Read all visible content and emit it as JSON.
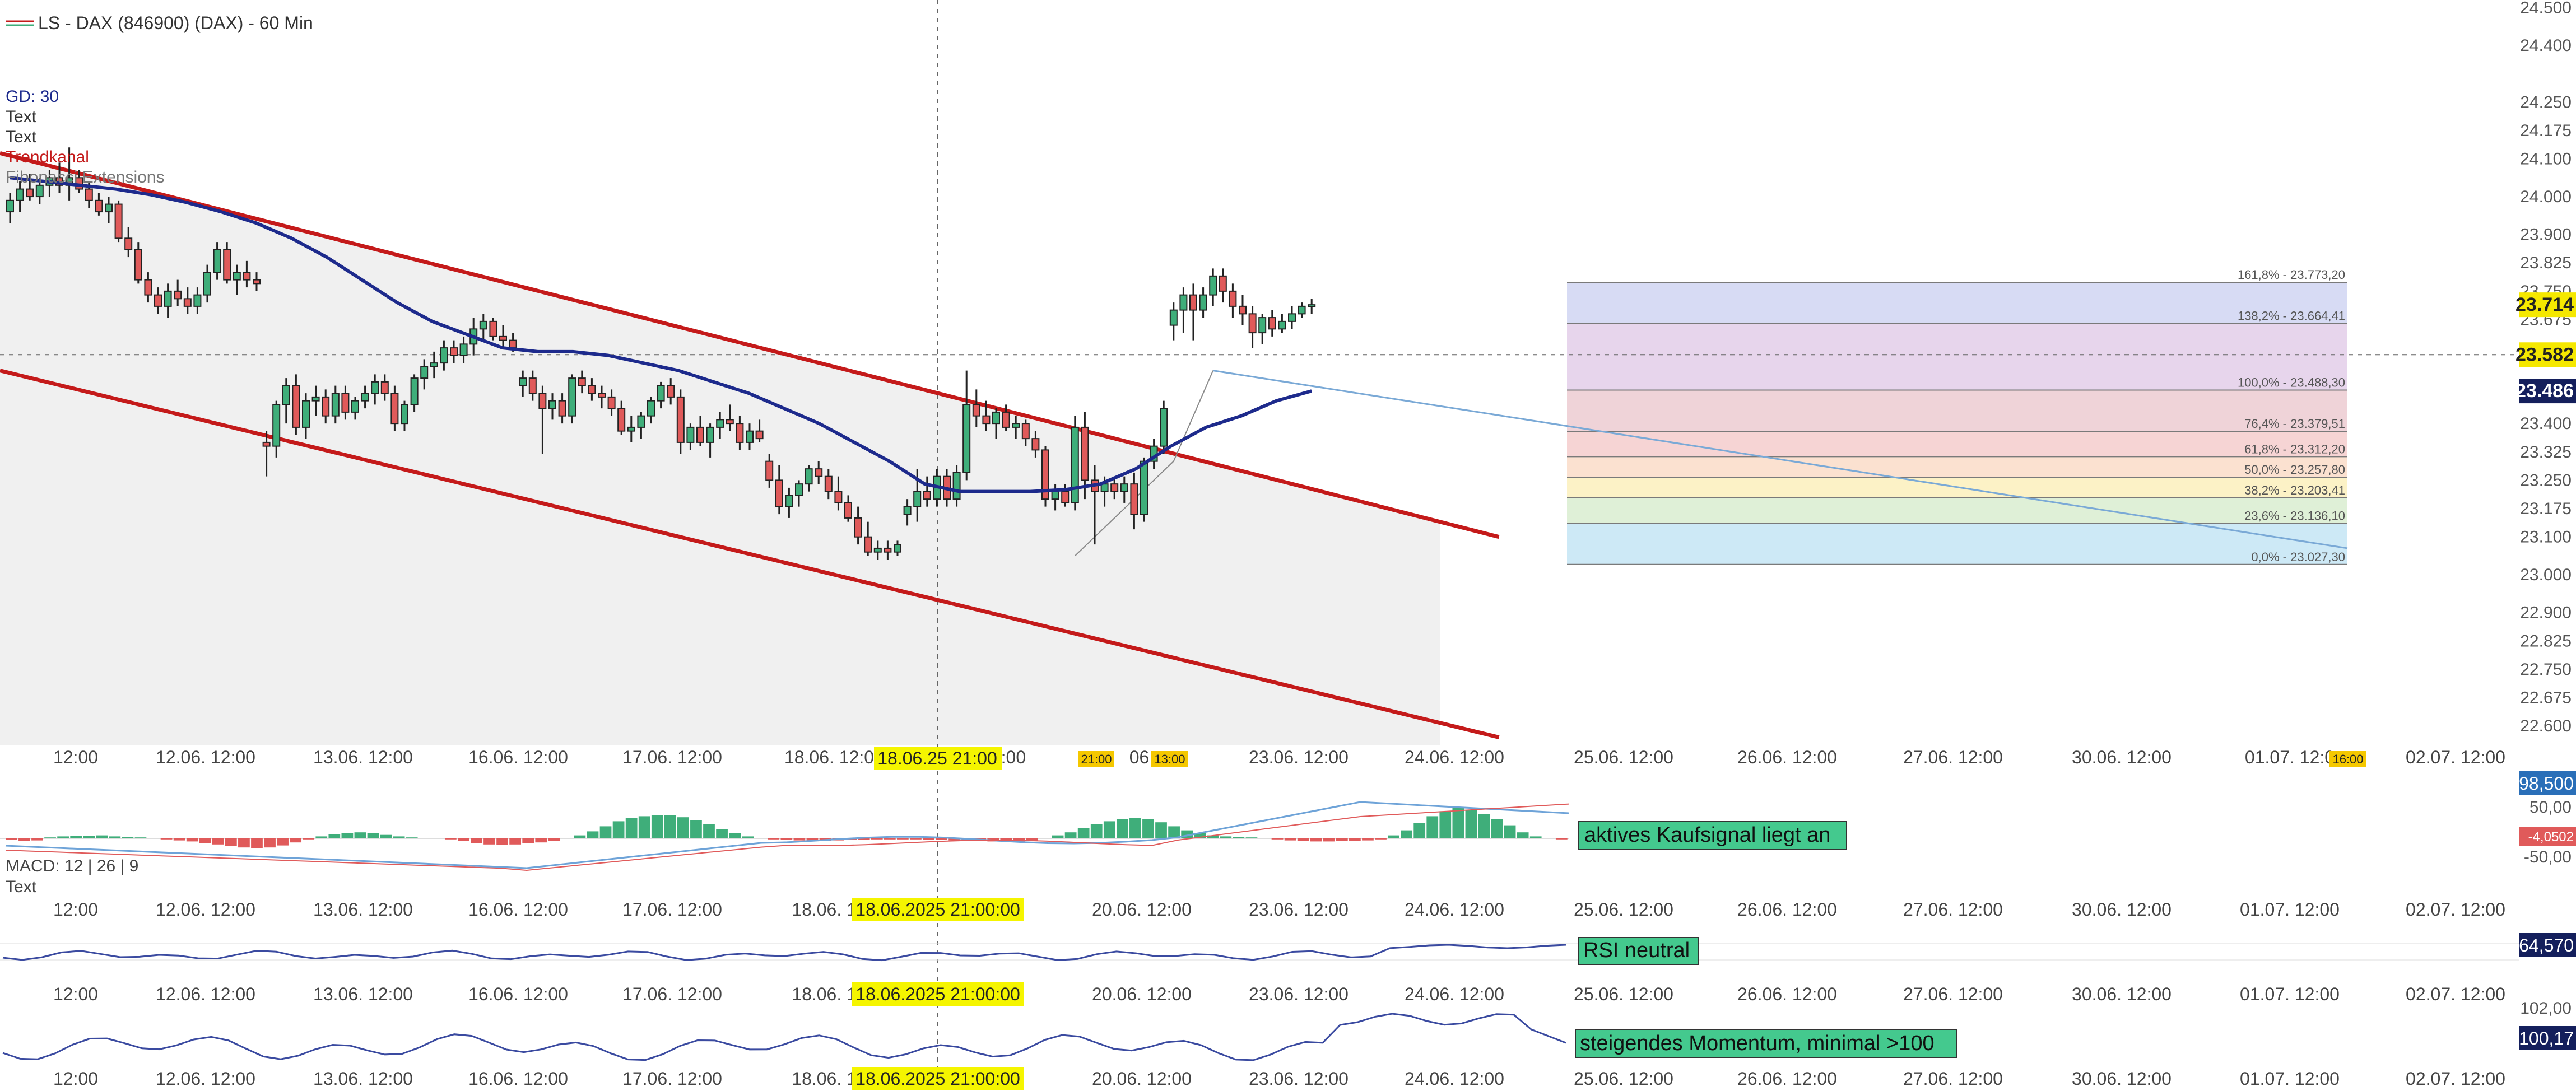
{
  "header": {
    "title": "LS - DAX (846900) (DAX) - 60 Min",
    "legend": [
      "GD: 30",
      "Text",
      "Text",
      "Trendkanal",
      "Fibonacci Extensions"
    ]
  },
  "colors": {
    "bull": "#3fae7a",
    "bear": "#e05a5a",
    "ma": "#1d2a8c",
    "channel": "#c41a1a",
    "channel_fill": "#f0f0f0",
    "marker": "#f5f500",
    "badge_dark": "#141f5c",
    "badge_yellow": "#f5e800",
    "signal_box": "#44c98e",
    "macd_line": "#6ea3d8",
    "signal_line": "#e05a5a",
    "rsi_line": "#3a4aa0"
  },
  "crosshair": {
    "price": "23.582",
    "date": "18.06.25 21:00",
    "date_long": "18.06.2025 21:00:00"
  },
  "time_markers": [
    "21:00",
    "13:00",
    "16:00"
  ],
  "x_axis": {
    "labels": [
      "12:00",
      "12.06. 12:00",
      "13.06. 12:00",
      "16.06. 12:00",
      "17.06. 12:00",
      "18.06. 12:00",
      "19.06. 12:00",
      "20.06. 12:00",
      "23.06. 12:00",
      "24.06. 12:00",
      "25.06. 12:00",
      "26.06. 12:00",
      "27.06. 12:00",
      "30.06. 12:00",
      "01.07. 12:00",
      "02.07. 12:00"
    ],
    "visible": [
      "12:00",
      "12.06. 12:00",
      "13.06. 12:00",
      "16.06. 12:00",
      "17.06. 12:00",
      "18.06. 12:0",
      "2:00",
      "06.",
      "23.06. 12:00",
      "24.06. 12:00",
      "25.06. 12:00",
      "26.06. 12:00",
      "27.06. 12:00",
      "30.06. 12:00",
      "01.07. 12:0",
      "02.07. 12:00"
    ],
    "visible_sub": [
      "12:00",
      "12.06. 12:00",
      "13.06. 12:00",
      "16.06. 12:00",
      "17.06. 12:00",
      "18.06. 12",
      "0",
      "20.06. 12:00",
      "23.06. 12:00",
      "24.06. 12:00",
      "25.06. 12:00",
      "26.06. 12:00",
      "27.06. 12:00",
      "30.06. 12:00",
      "01.07. 12:00",
      "02.07. 12:00"
    ]
  },
  "price_axis": {
    "ticks": [
      "24.500",
      "24.400",
      "24.250",
      "24.175",
      "24.100",
      "24.000",
      "23.900",
      "23.825",
      "23.750",
      "23.675",
      "23.400",
      "23.325",
      "23.250",
      "23.175",
      "23.100",
      "23.000",
      "22.900",
      "22.825",
      "22.750",
      "22.675",
      "22.600"
    ],
    "last_price": "23.714",
    "ma_value": "23.486"
  },
  "chart_data": {
    "type": "candlestick",
    "instrument": "LS - DAX (846900) (DAX)",
    "interval": "60 Min",
    "ylim": [
      22.55,
      24.52
    ],
    "moving_average": "GD: 30",
    "ohlc": [
      [
        23.96,
        24.01,
        23.93,
        23.99
      ],
      [
        23.99,
        24.04,
        23.96,
        24.02
      ],
      [
        24.02,
        24.06,
        23.99,
        24.0
      ],
      [
        24.0,
        24.05,
        23.98,
        24.03
      ],
      [
        24.03,
        24.07,
        24.0,
        24.05
      ],
      [
        24.05,
        24.09,
        24.01,
        24.03
      ],
      [
        24.03,
        24.13,
        23.99,
        24.05
      ],
      [
        24.05,
        24.07,
        24.01,
        24.02
      ],
      [
        24.02,
        24.04,
        23.97,
        23.99
      ],
      [
        23.99,
        24.01,
        23.95,
        23.96
      ],
      [
        23.96,
        24.0,
        23.93,
        23.98
      ],
      [
        23.98,
        23.99,
        23.88,
        23.89
      ],
      [
        23.89,
        23.92,
        23.84,
        23.86
      ],
      [
        23.86,
        23.88,
        23.77,
        23.78
      ],
      [
        23.78,
        23.8,
        23.72,
        23.74
      ],
      [
        23.74,
        23.76,
        23.69,
        23.71
      ],
      [
        23.71,
        23.77,
        23.68,
        23.75
      ],
      [
        23.75,
        23.78,
        23.71,
        23.73
      ],
      [
        23.73,
        23.76,
        23.69,
        23.71
      ],
      [
        23.71,
        23.76,
        23.69,
        23.74
      ],
      [
        23.74,
        23.82,
        23.72,
        23.8
      ],
      [
        23.8,
        23.88,
        23.78,
        23.86
      ],
      [
        23.86,
        23.88,
        23.77,
        23.78
      ],
      [
        23.78,
        23.82,
        23.74,
        23.8
      ],
      [
        23.8,
        23.83,
        23.76,
        23.78
      ],
      [
        23.78,
        23.8,
        23.75,
        23.77
      ],
      [
        23.35,
        23.38,
        23.26,
        23.34
      ],
      [
        23.34,
        23.46,
        23.31,
        23.45
      ],
      [
        23.45,
        23.52,
        23.4,
        23.5
      ],
      [
        23.5,
        23.53,
        23.37,
        23.39
      ],
      [
        23.39,
        23.48,
        23.36,
        23.46
      ],
      [
        23.46,
        23.5,
        23.42,
        23.47
      ],
      [
        23.47,
        23.49,
        23.4,
        23.42
      ],
      [
        23.42,
        23.5,
        23.4,
        23.48
      ],
      [
        23.48,
        23.5,
        23.41,
        23.43
      ],
      [
        23.43,
        23.47,
        23.41,
        23.46
      ],
      [
        23.46,
        23.5,
        23.44,
        23.48
      ],
      [
        23.48,
        23.53,
        23.45,
        23.51
      ],
      [
        23.51,
        23.53,
        23.46,
        23.48
      ],
      [
        23.48,
        23.5,
        23.38,
        23.4
      ],
      [
        23.4,
        23.46,
        23.38,
        23.45
      ],
      [
        23.45,
        23.53,
        23.43,
        23.52
      ],
      [
        23.52,
        23.57,
        23.49,
        23.55
      ],
      [
        23.55,
        23.59,
        23.52,
        23.56
      ],
      [
        23.56,
        23.62,
        23.54,
        23.6
      ],
      [
        23.6,
        23.62,
        23.56,
        23.58
      ],
      [
        23.58,
        23.63,
        23.56,
        23.61
      ],
      [
        23.61,
        23.68,
        23.58,
        23.65
      ],
      [
        23.65,
        23.69,
        23.62,
        23.67
      ],
      [
        23.67,
        23.68,
        23.62,
        23.63
      ],
      [
        23.63,
        23.66,
        23.6,
        23.62
      ],
      [
        23.62,
        23.64,
        23.59,
        23.6
      ],
      [
        23.5,
        23.54,
        23.47,
        23.52
      ],
      [
        23.52,
        23.54,
        23.46,
        23.48
      ],
      [
        23.48,
        23.5,
        23.32,
        23.44
      ],
      [
        23.44,
        23.48,
        23.41,
        23.46
      ],
      [
        23.46,
        23.48,
        23.4,
        23.42
      ],
      [
        23.42,
        23.53,
        23.4,
        23.52
      ],
      [
        23.52,
        23.54,
        23.48,
        23.5
      ],
      [
        23.5,
        23.52,
        23.46,
        23.48
      ],
      [
        23.48,
        23.5,
        23.44,
        23.47
      ],
      [
        23.47,
        23.49,
        23.42,
        23.44
      ],
      [
        23.44,
        23.46,
        23.37,
        23.38
      ],
      [
        23.38,
        23.42,
        23.35,
        23.39
      ],
      [
        23.39,
        23.43,
        23.36,
        23.42
      ],
      [
        23.42,
        23.47,
        23.4,
        23.46
      ],
      [
        23.46,
        23.51,
        23.44,
        23.5
      ],
      [
        23.5,
        23.52,
        23.45,
        23.47
      ],
      [
        23.47,
        23.49,
        23.32,
        23.35
      ],
      [
        23.35,
        23.4,
        23.33,
        23.39
      ],
      [
        23.39,
        23.42,
        23.34,
        23.35
      ],
      [
        23.35,
        23.4,
        23.31,
        23.39
      ],
      [
        23.39,
        23.43,
        23.36,
        23.41
      ],
      [
        23.41,
        23.45,
        23.38,
        23.4
      ],
      [
        23.4,
        23.42,
        23.33,
        23.35
      ],
      [
        23.35,
        23.4,
        23.33,
        23.38
      ],
      [
        23.38,
        23.41,
        23.35,
        23.36
      ],
      [
        23.3,
        23.32,
        23.23,
        23.25
      ],
      [
        23.25,
        23.29,
        23.16,
        23.18
      ],
      [
        23.18,
        23.23,
        23.15,
        23.21
      ],
      [
        23.21,
        23.25,
        23.18,
        23.24
      ],
      [
        23.24,
        23.29,
        23.22,
        23.28
      ],
      [
        23.28,
        23.3,
        23.24,
        23.26
      ],
      [
        23.26,
        23.28,
        23.2,
        23.22
      ],
      [
        23.22,
        23.26,
        23.17,
        23.19
      ],
      [
        23.19,
        23.21,
        23.14,
        23.15
      ],
      [
        23.15,
        23.18,
        23.08,
        23.1
      ],
      [
        23.1,
        23.14,
        23.05,
        23.06
      ],
      [
        23.06,
        23.09,
        23.04,
        23.07
      ],
      [
        23.07,
        23.09,
        23.04,
        23.06
      ],
      [
        23.06,
        23.09,
        23.05,
        23.08
      ],
      [
        23.16,
        23.2,
        23.13,
        23.18
      ],
      [
        23.18,
        23.28,
        23.14,
        23.22
      ],
      [
        23.22,
        23.26,
        23.18,
        23.2
      ],
      [
        23.2,
        23.28,
        23.18,
        23.26
      ],
      [
        23.26,
        23.28,
        23.18,
        23.2
      ],
      [
        23.2,
        23.29,
        23.18,
        23.27
      ],
      [
        23.27,
        23.54,
        23.25,
        23.45
      ],
      [
        23.45,
        23.49,
        23.39,
        23.42
      ],
      [
        23.42,
        23.46,
        23.38,
        23.4
      ],
      [
        23.4,
        23.44,
        23.36,
        23.43
      ],
      [
        23.43,
        23.45,
        23.38,
        23.39
      ],
      [
        23.39,
        23.42,
        23.36,
        23.4
      ],
      [
        23.4,
        23.41,
        23.34,
        23.36
      ],
      [
        23.36,
        23.38,
        23.31,
        23.33
      ],
      [
        23.33,
        23.34,
        23.18,
        23.2
      ],
      [
        23.2,
        23.24,
        23.17,
        23.22
      ],
      [
        23.22,
        23.24,
        23.18,
        23.19
      ],
      [
        23.19,
        23.42,
        23.17,
        23.39
      ],
      [
        23.39,
        23.43,
        23.2,
        23.25
      ],
      [
        23.25,
        23.29,
        23.08,
        23.22
      ],
      [
        23.22,
        23.26,
        23.18,
        23.24
      ],
      [
        23.24,
        23.26,
        23.2,
        23.22
      ],
      [
        23.22,
        23.26,
        23.19,
        23.24
      ],
      [
        23.24,
        23.27,
        23.12,
        23.16
      ],
      [
        23.16,
        23.31,
        23.14,
        23.3
      ],
      [
        23.3,
        23.36,
        23.28,
        23.34
      ],
      [
        23.34,
        23.46,
        23.32,
        23.44
      ],
      [
        23.66,
        23.72,
        23.62,
        23.7
      ],
      [
        23.7,
        23.76,
        23.64,
        23.74
      ],
      [
        23.74,
        23.77,
        23.62,
        23.7
      ],
      [
        23.7,
        23.76,
        23.68,
        23.74
      ],
      [
        23.74,
        23.81,
        23.71,
        23.79
      ],
      [
        23.79,
        23.81,
        23.72,
        23.75
      ],
      [
        23.75,
        23.77,
        23.68,
        23.71
      ],
      [
        23.71,
        23.74,
        23.66,
        23.69
      ],
      [
        23.69,
        23.71,
        23.6,
        23.64
      ],
      [
        23.64,
        23.69,
        23.61,
        23.68
      ],
      [
        23.68,
        23.7,
        23.63,
        23.65
      ],
      [
        23.65,
        23.69,
        23.64,
        23.67
      ],
      [
        23.67,
        23.71,
        23.65,
        23.69
      ],
      [
        23.69,
        23.72,
        23.68,
        23.71
      ],
      [
        23.71,
        23.73,
        23.69,
        23.714
      ]
    ],
    "ma_series": [
      24.05,
      24.04,
      24.03,
      24.02,
      24.005,
      23.985,
      23.96,
      23.93,
      23.89,
      23.84,
      23.78,
      23.72,
      23.67,
      23.635,
      23.6,
      23.59,
      23.59,
      23.58,
      23.56,
      23.54,
      23.51,
      23.48,
      23.44,
      23.4,
      23.35,
      23.3,
      23.24,
      23.22,
      23.22,
      23.22,
      23.225,
      23.24,
      23.28,
      23.34,
      23.39,
      23.42,
      23.46,
      23.486
    ],
    "trend_channel": {
      "upper": [
        [
          24.115,
          0
        ],
        [
          23.1,
          151
        ]
      ],
      "lower": [
        [
          23.54,
          0
        ],
        [
          22.57,
          151
        ]
      ]
    },
    "fibonacci": [
      {
        "label": "161,8% - 23.773,20",
        "level": 23773.2,
        "color": "#d7dbf4"
      },
      {
        "label": "138,2% - 23.664,41",
        "level": 23664.41,
        "color": "#e7d5ec"
      },
      {
        "label": "100,0% - 23.488,30",
        "level": 23488.3,
        "color": "#efd3d8"
      },
      {
        "label": "76,4% - 23.379,51",
        "level": 23379.51,
        "color": "#f6d4d4"
      },
      {
        "label": "61,8% - 23.312,20",
        "level": 23312.2,
        "color": "#fbe1d0"
      },
      {
        "label": "50,0% - 23.257,80",
        "level": 23257.8,
        "color": "#fcf2c6"
      },
      {
        "label": "38,2% - 23.203,41",
        "level": 23203.41,
        "color": "#dff0d7"
      },
      {
        "label": "23,6% - 23.136,10",
        "level": 23136.1,
        "color": "#cde9f6"
      },
      {
        "label": "0,0% - 23.027,30",
        "level": 23027.3,
        "color": "#cde9f6"
      }
    ],
    "macd": {
      "params": "MACD: 12 | 26 | 9",
      "sub_label": "Text",
      "ticks": [
        "98,500",
        "50,00",
        "-4,0502",
        "-50,00"
      ],
      "signal_text": "aktives Kaufsignal liegt an",
      "histogram": [
        -3,
        -5,
        -4,
        2,
        4,
        5,
        5,
        6,
        4,
        3,
        2,
        1,
        -2,
        -4,
        -6,
        -9,
        -12,
        -15,
        -18,
        -20,
        -18,
        -14,
        -8,
        -2,
        4,
        8,
        10,
        12,
        10,
        7,
        4,
        2,
        1,
        0,
        -2,
        -5,
        -9,
        -12,
        -13,
        -12,
        -10,
        -8,
        -5,
        0,
        6,
        14,
        24,
        34,
        40,
        44,
        46,
        46,
        42,
        36,
        28,
        18,
        10,
        4,
        0,
        -2,
        -3,
        -4,
        -4,
        -5,
        -4,
        -3,
        -3,
        -2,
        -2,
        -2,
        -2,
        -3,
        -3,
        -4,
        -4,
        -5,
        -6,
        -6,
        -6,
        -5,
        0,
        6,
        12,
        20,
        28,
        34,
        38,
        40,
        38,
        32,
        24,
        16,
        10,
        6,
        4,
        3,
        2,
        1,
        -2,
        -4,
        -5,
        -6,
        -6,
        -5,
        -5,
        -4,
        -2,
        6,
        16,
        30,
        44,
        54,
        60,
        56,
        48,
        38,
        26,
        12,
        4,
        0,
        -2
      ]
    },
    "rsi": {
      "value": "64,570",
      "signal_text": "RSI neutral"
    },
    "momentum": {
      "ticks": [
        "102,00",
        "100,17"
      ],
      "signal_text": "steigendes Momentum, minimal >100"
    }
  }
}
